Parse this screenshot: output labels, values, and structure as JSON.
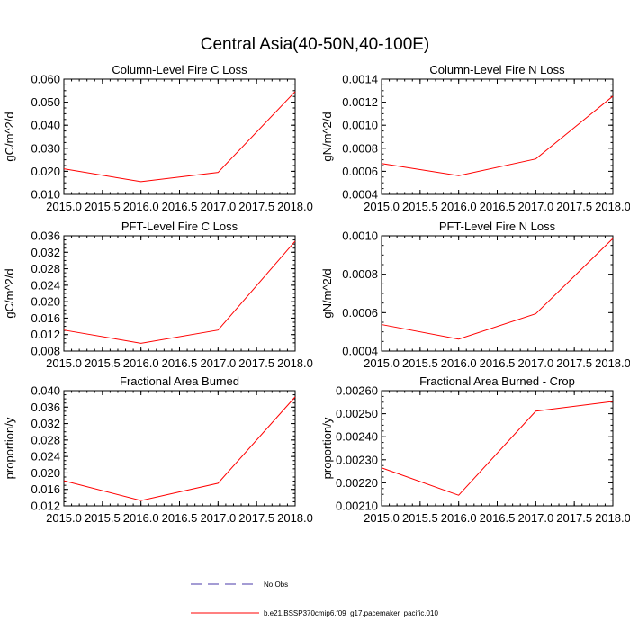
{
  "title": "Central Asia(40-50N,40-100E)",
  "legend": {
    "entries": [
      {
        "label": "No Obs",
        "color": "#4a3aa8",
        "style": "dashed"
      },
      {
        "label": "b.e21.BSSP370cmip6.f09_g17.pacemaker_pacific.010",
        "color": "#ff0000",
        "style": "solid"
      }
    ]
  },
  "chart_data": [
    {
      "type": "line",
      "title": "Column-Level Fire C Loss",
      "ylabel": "gC/m^2/d",
      "x": [
        2015.0,
        2016.0,
        2017.0,
        2018.0
      ],
      "xlim": [
        2015.0,
        2018.0
      ],
      "xticks": [
        "2015.0",
        "2015.5",
        "2016.0",
        "2016.5",
        "2017.0",
        "2017.5",
        "2018.0"
      ],
      "ylim": [
        0.01,
        0.06
      ],
      "yticks": [
        "0.010",
        "0.020",
        "0.030",
        "0.040",
        "0.050",
        "0.060"
      ],
      "series": [
        {
          "name": "b.e21.BSSP370cmip6.f09_g17.pacemaker_pacific.010",
          "color": "#ff0000",
          "values": [
            0.0211,
            0.0155,
            0.0195,
            0.0546
          ]
        }
      ]
    },
    {
      "type": "line",
      "title": "Column-Level Fire N Loss",
      "ylabel": "gN/m^2/d",
      "x": [
        2015.0,
        2016.0,
        2017.0,
        2018.0
      ],
      "xlim": [
        2015.0,
        2018.0
      ],
      "xticks": [
        "2015.0",
        "2015.5",
        "2016.0",
        "2016.5",
        "2017.0",
        "2017.5",
        "2018.0"
      ],
      "ylim": [
        0.0004,
        0.0014
      ],
      "yticks": [
        "0.0004",
        "0.0006",
        "0.0008",
        "0.0010",
        "0.0012",
        "0.0014"
      ],
      "series": [
        {
          "name": "b.e21.BSSP370cmip6.f09_g17.pacemaker_pacific.010",
          "color": "#ff0000",
          "values": [
            0.000668,
            0.000562,
            0.000707,
            0.001252
          ]
        }
      ]
    },
    {
      "type": "line",
      "title": "PFT-Level Fire C Loss",
      "ylabel": "gC/m^2/d",
      "x": [
        2015.0,
        2016.0,
        2017.0,
        2018.0
      ],
      "xlim": [
        2015.0,
        2018.0
      ],
      "xticks": [
        "2015.0",
        "2015.5",
        "2016.0",
        "2016.5",
        "2017.0",
        "2017.5",
        "2018.0"
      ],
      "ylim": [
        0.008,
        0.036
      ],
      "yticks": [
        "0.008",
        "0.012",
        "0.016",
        "0.020",
        "0.024",
        "0.028",
        "0.032",
        "0.036"
      ],
      "series": [
        {
          "name": "b.e21.BSSP370cmip6.f09_g17.pacemaker_pacific.010",
          "color": "#ff0000",
          "values": [
            0.0131,
            0.0099,
            0.0131,
            0.0347
          ]
        }
      ]
    },
    {
      "type": "line",
      "title": "PFT-Level Fire N Loss",
      "ylabel": "gN/m^2/d",
      "x": [
        2015.0,
        2016.0,
        2017.0,
        2018.0
      ],
      "xlim": [
        2015.0,
        2018.0
      ],
      "xticks": [
        "2015.0",
        "2015.5",
        "2016.0",
        "2016.5",
        "2017.0",
        "2017.5",
        "2018.0"
      ],
      "ylim": [
        0.0004,
        0.001
      ],
      "yticks": [
        "0.0004",
        "0.0006",
        "0.0008",
        "0.0010"
      ],
      "series": [
        {
          "name": "b.e21.BSSP370cmip6.f09_g17.pacemaker_pacific.010",
          "color": "#ff0000",
          "values": [
            0.000538,
            0.000462,
            0.000594,
            0.000986
          ]
        }
      ]
    },
    {
      "type": "line",
      "title": "Fractional Area Burned",
      "ylabel": "proportion/y",
      "x": [
        2015.0,
        2016.0,
        2017.0,
        2018.0
      ],
      "xlim": [
        2015.0,
        2018.0
      ],
      "xticks": [
        "2015.0",
        "2015.5",
        "2016.0",
        "2016.5",
        "2017.0",
        "2017.5",
        "2018.0"
      ],
      "ylim": [
        0.012,
        0.04
      ],
      "yticks": [
        "0.012",
        "0.016",
        "0.020",
        "0.024",
        "0.028",
        "0.032",
        "0.036",
        "0.040"
      ],
      "series": [
        {
          "name": "b.e21.BSSP370cmip6.f09_g17.pacemaker_pacific.010",
          "color": "#ff0000",
          "values": [
            0.0181,
            0.0133,
            0.0175,
            0.0385
          ]
        }
      ]
    },
    {
      "type": "line",
      "title": "Fractional Area Burned - Crop",
      "ylabel": "proportion/y",
      "x": [
        2015.0,
        2016.0,
        2017.0,
        2018.0
      ],
      "xlim": [
        2015.0,
        2018.0
      ],
      "xticks": [
        "2015.0",
        "2015.5",
        "2016.0",
        "2016.5",
        "2017.0",
        "2017.5",
        "2018.0"
      ],
      "ylim": [
        0.0021,
        0.0026
      ],
      "yticks": [
        "0.00210",
        "0.00220",
        "0.00230",
        "0.00240",
        "0.00250",
        "0.00260"
      ],
      "series": [
        {
          "name": "b.e21.BSSP370cmip6.f09_g17.pacemaker_pacific.010",
          "color": "#ff0000",
          "values": [
            0.002265,
            0.002146,
            0.002511,
            0.002553
          ]
        }
      ]
    }
  ]
}
